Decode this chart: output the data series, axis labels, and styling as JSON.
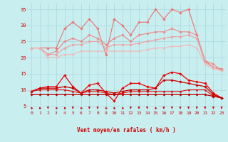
{
  "xlabel": "Vent moyen/en rafales ( km/h )",
  "bg_color": "#c8eef0",
  "grid_color": "#a8d8dc",
  "x": [
    0,
    1,
    2,
    3,
    4,
    5,
    6,
    7,
    8,
    9,
    10,
    11,
    12,
    13,
    14,
    15,
    16,
    17,
    18,
    19,
    20,
    21,
    22,
    23
  ],
  "series": [
    {
      "name": "s1_top_spiky",
      "color": "#f07070",
      "lw": 0.8,
      "marker": "D",
      "ms": 1.8,
      "y": [
        23,
        23,
        23,
        23,
        29,
        31,
        29,
        32,
        29,
        21,
        32,
        30,
        27,
        31,
        31,
        35,
        32,
        35,
        34,
        35,
        27,
        19,
        17,
        16.5
      ]
    },
    {
      "name": "s2_upper",
      "color": "#f08888",
      "lw": 0.8,
      "marker": "D",
      "ms": 1.8,
      "y": [
        23,
        23,
        21,
        22,
        25,
        26,
        25,
        27,
        26,
        24,
        26,
        27,
        25,
        27,
        27.5,
        28,
        28,
        29,
        28,
        28,
        27,
        19,
        18,
        16
      ]
    },
    {
      "name": "s3_mid_upper",
      "color": "#f0a0a0",
      "lw": 0.8,
      "marker": "D",
      "ms": 1.8,
      "y": [
        23,
        23,
        21,
        21,
        23,
        24,
        24,
        25,
        25,
        23,
        24,
        24,
        24,
        24.5,
        25,
        25.5,
        26,
        26.5,
        26.5,
        27,
        26,
        18.5,
        17,
        16
      ]
    },
    {
      "name": "s4_lower_diag",
      "color": "#f0b8b8",
      "lw": 0.8,
      "marker": "D",
      "ms": 1.5,
      "y": [
        23,
        23,
        20,
        20,
        21,
        21,
        22,
        22,
        22,
        22,
        22,
        22,
        22,
        22,
        22.5,
        23,
        23,
        23.5,
        23.5,
        24,
        23,
        18,
        16.5,
        16
      ]
    },
    {
      "name": "s5_red_spiky",
      "color": "#ee0000",
      "lw": 0.9,
      "marker": "D",
      "ms": 1.8,
      "y": [
        9.5,
        10.5,
        11,
        11,
        14.5,
        11,
        9,
        11.5,
        12,
        9,
        6.5,
        10.5,
        12,
        12,
        11,
        10.5,
        14.5,
        15.5,
        15,
        13,
        12.5,
        12,
        9,
        7.5
      ]
    },
    {
      "name": "s6_red_mid",
      "color": "#cc0000",
      "lw": 0.9,
      "marker": "D",
      "ms": 1.8,
      "y": [
        9.5,
        10.5,
        10.5,
        10.5,
        11,
        10.5,
        9,
        10,
        10,
        9.5,
        9,
        9.5,
        10,
        10,
        10,
        10.5,
        13,
        13,
        12.5,
        12,
        11.5,
        11,
        8.5,
        7.5
      ]
    },
    {
      "name": "s7_red_flat",
      "color": "#dd1111",
      "lw": 0.8,
      "marker": "D",
      "ms": 1.5,
      "y": [
        9.5,
        10,
        10,
        10,
        10,
        9.5,
        9,
        9.5,
        9.5,
        9,
        8.5,
        9,
        9.5,
        9.5,
        9.5,
        9.5,
        9.5,
        9.5,
        9.5,
        10,
        10,
        10,
        8,
        7.5
      ]
    },
    {
      "name": "s8_red_low",
      "color": "#bb0000",
      "lw": 0.9,
      "marker": "D",
      "ms": 1.8,
      "y": [
        8.5,
        8.5,
        8.5,
        8.5,
        8.5,
        8.5,
        8.5,
        8.5,
        8.5,
        8.5,
        8.5,
        8.5,
        8.5,
        8.5,
        8.5,
        8.5,
        8.5,
        8.5,
        8.5,
        8.5,
        8.5,
        8.5,
        8,
        7.5
      ]
    }
  ],
  "wind_arrows": [
    0,
    0,
    270,
    0,
    0,
    270,
    0,
    270,
    270,
    0,
    0,
    0,
    270,
    270,
    270,
    0,
    270,
    270,
    270,
    270,
    270,
    270,
    270,
    270
  ],
  "xlim": [
    -0.5,
    23.5
  ],
  "ylim": [
    3.5,
    37
  ],
  "yticks": [
    5,
    10,
    15,
    20,
    25,
    30,
    35
  ],
  "xticks": [
    0,
    1,
    2,
    3,
    4,
    5,
    6,
    7,
    8,
    9,
    10,
    11,
    12,
    13,
    14,
    15,
    16,
    17,
    18,
    19,
    20,
    21,
    22,
    23
  ]
}
